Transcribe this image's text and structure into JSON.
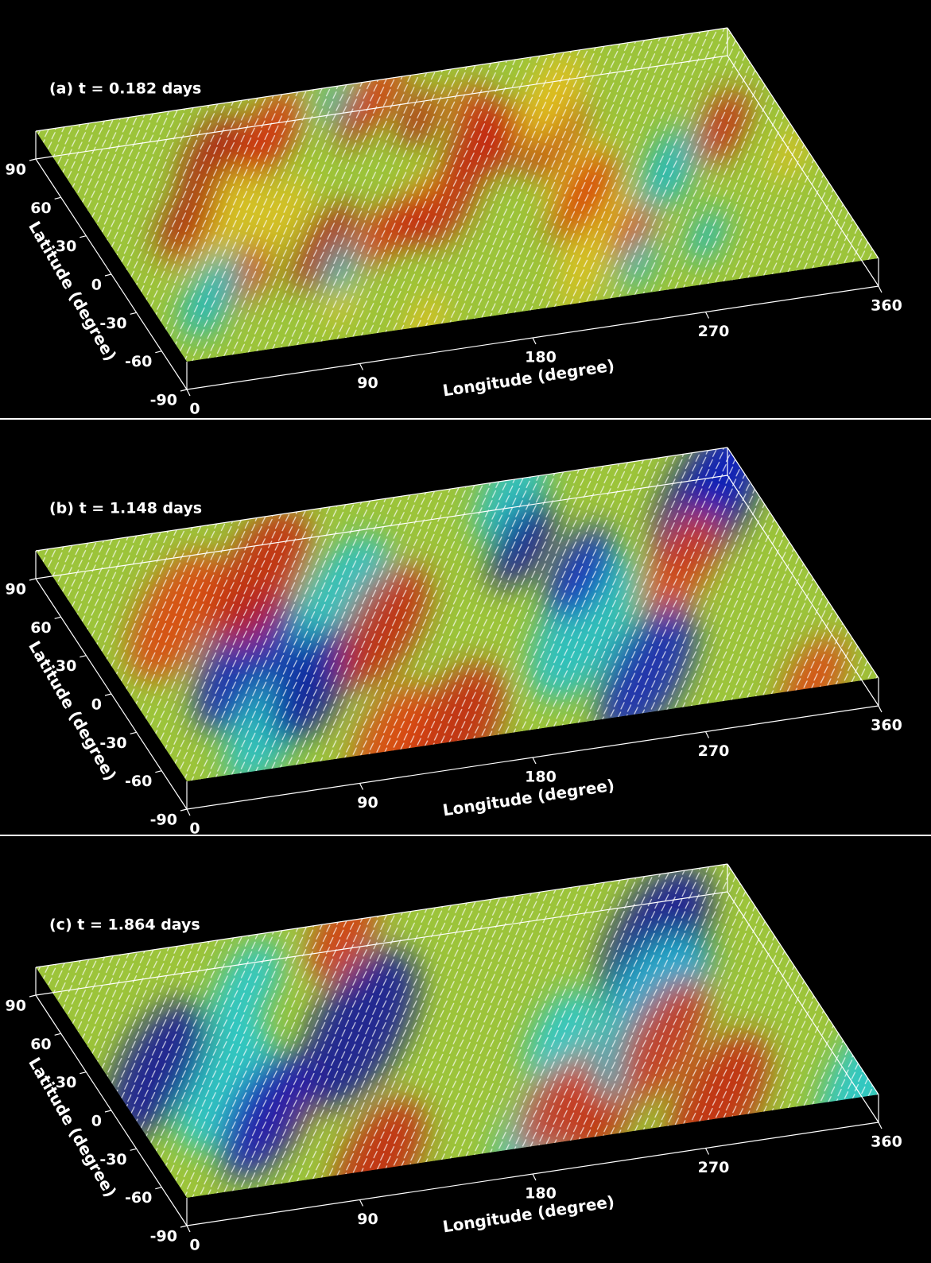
{
  "chart_data": [
    {
      "type": "surface",
      "title": "(a) t = 0.182 days",
      "x_label": "Longitude (degree)",
      "y_label": "Latitude (degree)",
      "xlim": [
        0,
        360
      ],
      "ylim": [
        -90,
        90
      ],
      "xticks": [
        0,
        90,
        180,
        270,
        360
      ],
      "yticks": [
        -90,
        -60,
        -30,
        0,
        30,
        60,
        90
      ]
    },
    {
      "type": "surface",
      "title": "(b) t = 1.148 days",
      "x_label": "Longitude (degree)",
      "y_label": "Latitude (degree)",
      "xlim": [
        0,
        360
      ],
      "ylim": [
        -90,
        90
      ],
      "xticks": [
        0,
        90,
        180,
        270,
        360
      ],
      "yticks": [
        -90,
        -60,
        -30,
        0,
        30,
        60,
        90
      ]
    },
    {
      "type": "surface",
      "title": "(c) t = 1.864 days",
      "x_label": "Longitude (degree)",
      "y_label": "Latitude (degree)",
      "xlim": [
        0,
        360
      ],
      "ylim": [
        -90,
        90
      ],
      "xticks": [
        0,
        90,
        180,
        270,
        360
      ],
      "yticks": [
        -90,
        -60,
        -30,
        0,
        30,
        60,
        90
      ]
    }
  ]
}
